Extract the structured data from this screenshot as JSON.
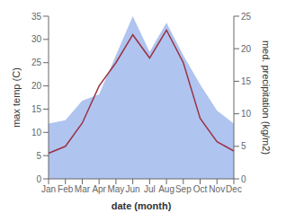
{
  "chart_data": {
    "type": "line",
    "xlabel": "date (month)",
    "ylabel": "max temp (C)",
    "y2label": "med. precipitation (kg/m2)",
    "categories": [
      "Jan",
      "Feb",
      "Mar",
      "Apr",
      "May",
      "Jun",
      "Jul",
      "Aug",
      "Sep",
      "Oct",
      "Nov",
      "Dec"
    ],
    "series": [
      {
        "type": "area",
        "axis": "y2",
        "color": "#b0c4f0",
        "values": [
          8.5,
          9.0,
          12.0,
          13.0,
          19.0,
          25.0,
          19.5,
          24.0,
          19.0,
          14.5,
          10.5,
          8.5
        ]
      },
      {
        "type": "line",
        "color": "#993344",
        "values": [
          5.5,
          7.0,
          12.0,
          20.0,
          25.0,
          31.0,
          26.0,
          32.0,
          25.0,
          13.0,
          8.0,
          6.0
        ]
      }
    ],
    "ylim": [
      0,
      35
    ],
    "yticks": [
      0,
      5,
      10,
      15,
      20,
      25,
      30,
      35
    ],
    "y2lim": [
      0,
      25
    ],
    "y2ticks": [
      0,
      5,
      10,
      15,
      20,
      25
    ],
    "grid": false
  }
}
